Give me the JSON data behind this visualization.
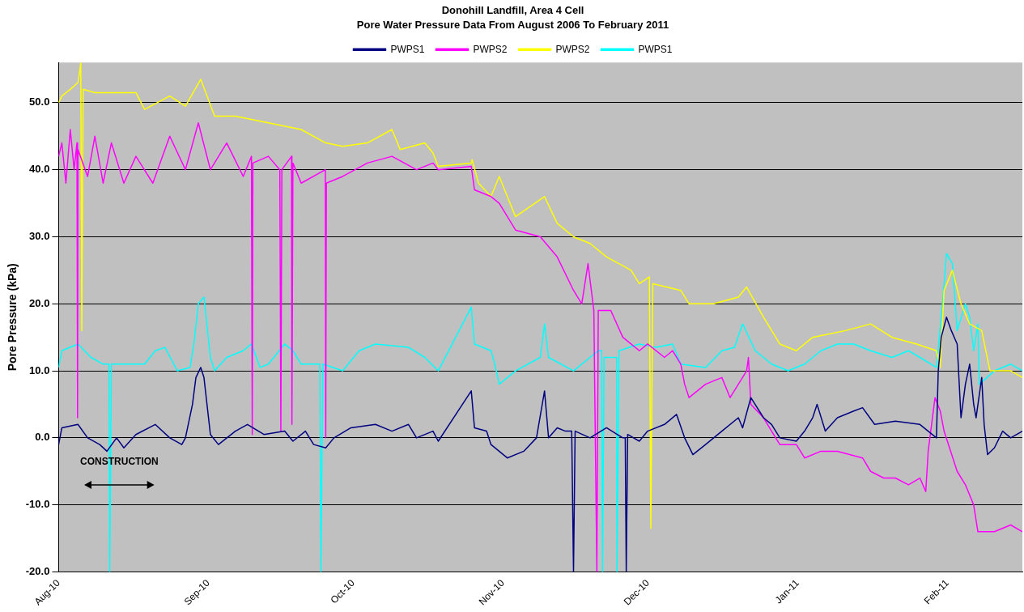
{
  "chart_data": {
    "type": "line",
    "title": "Donohill Landfill, Area 4 Cell",
    "subtitle": "Pore Water Pressure Data From August 2006 To February 2011",
    "ylabel": "Pore Pressure (kPa)",
    "legend": "top",
    "grid": "y",
    "marker": "none",
    "line_style": "solid",
    "xlim": [
      "2010-08-01",
      "2011-02-16T12:00"
    ],
    "xticks": [
      {
        "value": "2010-08-01",
        "label": "Aug-10"
      },
      {
        "value": "2010-09-01",
        "label": "Sep-10"
      },
      {
        "value": "2010-10-01",
        "label": "Oct-10"
      },
      {
        "value": "2010-11-01",
        "label": "Nov-10"
      },
      {
        "value": "2010-12-01",
        "label": "Dec-10"
      },
      {
        "value": "2011-01-01",
        "label": "Jan-11"
      },
      {
        "value": "2011-02-01",
        "label": "Feb-11"
      }
    ],
    "ylim": [
      -20,
      56
    ],
    "yticks": [
      {
        "value": -20,
        "label": "-20.0"
      },
      {
        "value": -10,
        "label": "-10.0"
      },
      {
        "value": 0,
        "label": "0.0"
      },
      {
        "value": 10,
        "label": "10.0"
      },
      {
        "value": 20,
        "label": "20.0"
      },
      {
        "value": 30,
        "label": "30.0"
      },
      {
        "value": 40,
        "label": "40.0"
      },
      {
        "value": 50,
        "label": "50.0"
      }
    ],
    "annotations": [
      "CONSTRUCTION"
    ],
    "series": [
      {
        "name": "PWPS1",
        "color": "#000080",
        "x": [
          "2010-08-01",
          "2010-08-01T16:00",
          "2010-08-05",
          "2010-08-07",
          "2010-08-09T12:00",
          "2010-08-11",
          "2010-08-13",
          "2010-08-14T12:00",
          "2010-08-17",
          "2010-08-21",
          "2010-08-24",
          "2010-08-26T12:00",
          "2010-08-27T06:00",
          "2010-08-28T17:00",
          "2010-08-29T10:00",
          "2010-08-30T10:00",
          "2010-08-31T02:00",
          "2010-09-01T10:00",
          "2010-09-03T02:00",
          "2010-09-06T14:00",
          "2010-09-09T02:00",
          "2010-09-12T12:00",
          "2010-09-16T19:00",
          "2010-09-18T12:00",
          "2010-09-21T02:00",
          "2010-09-22T19:00",
          "2010-09-25T07:00",
          "2010-09-27",
          "2010-09-30T12:00",
          "2010-10-05T14:00",
          "2010-10-09",
          "2010-10-12T10:00",
          "2010-10-14T02:00",
          "2010-10-17T12:00",
          "2010-10-18T14:00",
          "2010-10-25T10:00",
          "2010-10-26T02:00",
          "2010-10-28T14:00",
          "2010-10-29T12:00",
          "2010-11-01T21:00",
          "2010-11-05T07:00",
          "2010-11-07T22:00",
          "2010-11-09T14:00",
          "2010-11-10T10:00",
          "2010-11-12T05:00",
          "2010-11-13T22:00",
          "2010-11-15T05:00",
          "2010-11-15T14:00",
          "2010-11-15T22:00",
          "2010-11-19",
          "2010-11-22T10:00",
          "2010-11-25T19:00",
          "2010-11-26T07:00",
          "2010-11-26T12:00",
          "2010-11-26T19:00",
          "2010-11-29T05:00",
          "2010-11-30T22:00",
          "2010-12-04T10:00",
          "2010-12-06T22:00",
          "2010-12-08T14:00",
          "2010-12-10T07:00",
          "2010-12-12T22:00",
          "2010-12-16T07:00",
          "2010-12-19T17:00",
          "2010-12-20T14:00",
          "2010-12-22T07:00",
          "2010-12-24T22:00",
          "2010-12-26T14:00",
          "2010-12-28T07:00",
          "2010-12-31T17:00",
          "2011-01-02T10:00",
          "2011-01-04T02:00",
          "2011-01-05",
          "2011-01-06T17:00",
          "2011-01-09T05:00",
          "2011-01-12T14:00",
          "2011-01-14T10:00",
          "2011-01-16T22:00",
          "2011-01-21T05:00",
          "2011-01-26T07:00",
          "2011-01-28",
          "2011-01-29T17:00",
          "2011-01-30T02:00",
          "2011-01-30T17:00",
          "2011-01-31T19:00",
          "2011-02-01T19:00",
          "2011-02-03",
          "2011-02-03T19:00",
          "2011-02-04T17:00",
          "2011-02-05T14:00",
          "2011-02-06T10:00",
          "2011-02-06T22:00",
          "2011-02-08T02:00",
          "2011-02-08T14:00",
          "2011-02-09T07:00",
          "2011-02-10T17:00",
          "2011-02-12T10:00",
          "2011-02-14T02:00",
          "2011-02-16T12:00"
        ],
        "values": [
          -1,
          1.5,
          2,
          0,
          -1,
          -2,
          0,
          -1.5,
          0.5,
          2,
          0,
          -1,
          0,
          5,
          9,
          10.5,
          9,
          0.5,
          -1,
          1,
          2,
          0.5,
          1,
          -0.5,
          1,
          -1,
          -1.5,
          0,
          1.5,
          2,
          1,
          2,
          0,
          1,
          -0.5,
          7,
          1.5,
          1,
          -1,
          -3,
          -2,
          0,
          7,
          0,
          1.5,
          1,
          1,
          -20,
          1,
          0,
          1.5,
          0,
          0,
          -20,
          0.5,
          -0.5,
          1,
          2,
          3.5,
          0,
          -2.5,
          -1,
          1,
          3,
          1.5,
          6,
          3,
          2,
          0,
          -0.5,
          1,
          3,
          5,
          1,
          3,
          4,
          4.5,
          2,
          2.5,
          2,
          1,
          0,
          10,
          15,
          18,
          16,
          14,
          3,
          8,
          11,
          5,
          3,
          9,
          2,
          -2.5,
          -1.5,
          1,
          0,
          1
        ]
      },
      {
        "name": "PWPS2",
        "color": "#ff00ff",
        "x": [
          "2010-08-01",
          "2010-08-01T16:00",
          "2010-08-02T12:00",
          "2010-08-03T10:00",
          "2010-08-04T05:00",
          "2010-08-04T19:00",
          "2010-08-04T22:00",
          "2010-08-05",
          "2010-08-07",
          "2010-08-08T12:00",
          "2010-08-10T05:00",
          "2010-08-11T22:00",
          "2010-08-14T12:00",
          "2010-08-17",
          "2010-08-20T12:00",
          "2010-08-24",
          "2010-08-27T06:00",
          "2010-08-29T22:00",
          "2010-09-01T10:00",
          "2010-09-04T19:00",
          "2010-09-08T05:00",
          "2010-09-09T22:00",
          "2010-09-10T02:00",
          "2010-09-10T05:00",
          "2010-09-13T10:00",
          "2010-09-15T19:00",
          "2010-09-16",
          "2010-09-16T05:00",
          "2010-09-18T05:00",
          "2010-09-18T07:00",
          "2010-09-18T12:00",
          "2010-09-20T05:00",
          "2010-09-25T05:00",
          "2010-09-25T07:00",
          "2010-09-25T10:00",
          "2010-09-28T19:00",
          "2010-10-03T22:00",
          "2010-10-09",
          "2010-10-14T02:00",
          "2010-10-17T12:00",
          "2010-10-18T14:00",
          "2010-10-25T10:00",
          "2010-10-26T02:00",
          "2010-10-29T12:00",
          "2010-10-31T05:00",
          "2010-11-03T14:00",
          "2010-11-08T17:00",
          "2010-11-12T05:00",
          "2010-11-15T14:00",
          "2010-11-17T07:00",
          "2010-11-18T14:00",
          "2010-11-19T19:00",
          "2010-11-20T10:00",
          "2010-11-20T17:00",
          "2010-11-23T07:00",
          "2010-11-25T19:00",
          "2010-11-29T05:00",
          "2010-11-30T22:00",
          "2010-12-04T10:00",
          "2010-12-06T02:00",
          "2010-12-07T19:00",
          "2010-12-08T14:00",
          "2010-12-09T12:00",
          "2010-12-12T22:00",
          "2010-12-16T07:00",
          "2010-12-18",
          "2010-12-21T10:00",
          "2010-12-21T19:00",
          "2010-12-22T07:00",
          "2010-12-24T22:00",
          "2010-12-26T14:00",
          "2010-12-28T07:00",
          "2010-12-31T17:00",
          "2011-01-02T10:00",
          "2011-01-05T19:00",
          "2011-01-09T05:00",
          "2011-01-14T10:00",
          "2011-01-16T02:00",
          "2011-01-18T19:00",
          "2011-01-21T05:00",
          "2011-01-23T22:00",
          "2011-01-26T07:00",
          "2011-01-27T12:00",
          "2011-01-28",
          "2011-01-29T10:00",
          "2011-01-30T12:00",
          "2011-01-31T07:00",
          "2011-02-03",
          "2011-02-04T17:00",
          "2011-02-06T10:00",
          "2011-02-07T07:00",
          "2011-02-10T17:00",
          "2011-02-14T02:00",
          "2011-02-16T12:00"
        ],
        "values": [
          42,
          44,
          38,
          46,
          40,
          44,
          3,
          43,
          39,
          45,
          38,
          44,
          38,
          42,
          38,
          45,
          40,
          47,
          40,
          44,
          39,
          42,
          0.5,
          41,
          42,
          40,
          1,
          40,
          42,
          2,
          41,
          38,
          40,
          0,
          38,
          39,
          41,
          42,
          40,
          41,
          40,
          40.5,
          37,
          36,
          35,
          31,
          30,
          27,
          22,
          20,
          26,
          19,
          -20,
          19,
          19,
          15,
          13,
          14,
          12,
          13,
          11,
          8,
          6,
          8,
          9,
          6,
          10,
          12,
          5,
          3,
          1,
          -1,
          -1,
          -3,
          -2,
          -2,
          -3,
          -5,
          -6,
          -6,
          -7,
          -6,
          -8,
          -2,
          6,
          4,
          1,
          -5,
          -7,
          -10,
          -14,
          -14,
          -13,
          -14
        ]
      },
      {
        "name": "PWPS2",
        "color": "#ffff00",
        "x": [
          "2010-08-01",
          "2010-08-01T16:00",
          "2010-08-03T10:00",
          "2010-08-05",
          "2010-08-05T10:00",
          "2010-08-05T14:00",
          "2010-08-05T19:00",
          "2010-08-06T02:00",
          "2010-08-08T12:00",
          "2010-08-17",
          "2010-08-18T19:00",
          "2010-08-24",
          "2010-08-27T06:00",
          "2010-08-30T10:00",
          "2010-09-02T07:00",
          "2010-09-06T14:00",
          "2010-09-13T10:00",
          "2010-09-20T05:00",
          "2010-09-25T07:00",
          "2010-09-28T19:00",
          "2010-10-03T22:00",
          "2010-10-09",
          "2010-10-10T17:00",
          "2010-10-15T19:00",
          "2010-10-17T12:00",
          "2010-10-18T14:00",
          "2010-10-25T10:00",
          "2010-10-25T14:00",
          "2010-10-26T22:00",
          "2010-10-29T12:00",
          "2010-10-31T05:00",
          "2010-11-01T21:00",
          "2010-11-03T14:00",
          "2010-11-09T14:00",
          "2010-11-12T05:00",
          "2010-11-15T14:00",
          "2010-11-19",
          "2010-11-22T10:00",
          "2010-11-27T12:00",
          "2010-11-29T05:00",
          "2010-12-01T07:00",
          "2010-12-01T14:00",
          "2010-12-02",
          "2010-12-07T19:00",
          "2010-12-09T12:00",
          "2010-12-14T14:00",
          "2010-12-19T17:00",
          "2010-12-21T10:00",
          "2010-12-24T22:00",
          "2010-12-28T07:00",
          "2010-12-31T17:00",
          "2011-01-04T02:00",
          "2011-01-10T22:00",
          "2011-01-16T02:00",
          "2011-01-20T12:00",
          "2011-01-25T14:00",
          "2011-01-29T17:00",
          "2011-01-30T12:00",
          "2011-01-31T07:00",
          "2011-02-02",
          "2011-02-03T19:00",
          "2011-02-05T14:00",
          "2011-02-08T02:00",
          "2011-02-09T19:00",
          "2011-02-14T02:00",
          "2011-02-16T12:00"
        ],
        "values": [
          50,
          51,
          52,
          53,
          55,
          56,
          16,
          52,
          51.5,
          51.5,
          49,
          51,
          49.5,
          53.5,
          48,
          48,
          47,
          46,
          44,
          43.5,
          44,
          46,
          43,
          44,
          42.5,
          40.5,
          41,
          41.5,
          38,
          36,
          39,
          36,
          33,
          36,
          32,
          30,
          29,
          27,
          25,
          23,
          24,
          -13.5,
          23,
          22,
          20,
          20,
          21,
          22.5,
          18,
          14,
          13,
          15,
          16,
          17,
          15,
          14,
          13,
          10.5,
          22,
          25,
          20,
          17,
          16,
          10,
          10,
          9
        ]
      },
      {
        "name": "PWPS1",
        "color": "#00ffff",
        "x": [
          "2010-08-01",
          "2010-08-01T16:00",
          "2010-08-05",
          "2010-08-07T17:00",
          "2010-08-10T05:00",
          "2010-08-11T10:00",
          "2010-08-11T14:00",
          "2010-08-11T22:00",
          "2010-08-18T19:00",
          "2010-08-21",
          "2010-08-23",
          "2010-08-25T14:00",
          "2010-08-28T05:00",
          "2010-08-29",
          "2010-08-29T22:00",
          "2010-08-31T02:00",
          "2010-09-01T10:00",
          "2010-09-02T07:00",
          "2010-09-04T19:00",
          "2010-09-08T05:00",
          "2010-09-09T22:00",
          "2010-09-11T17:00",
          "2010-09-13T10:00",
          "2010-09-16T19:00",
          "2010-09-18T12:00",
          "2010-09-20T05:00",
          "2010-09-24T02:00",
          "2010-09-24T07:00",
          "2010-09-24T17:00",
          "2010-09-28T19:00",
          "2010-10-02T05:00",
          "2010-10-05T14:00",
          "2010-10-12T10:00",
          "2010-10-15T19:00",
          "2010-10-18T14:00",
          "2010-10-25T10:00",
          "2010-10-26T02:00",
          "2010-10-29T12:00",
          "2010-10-30T07:00",
          "2010-10-31T05:00",
          "2010-11-03T14:00",
          "2010-11-08T17:00",
          "2010-11-09T14:00",
          "2010-11-10T10:00",
          "2010-11-15T14:00",
          "2010-11-19",
          "2010-11-20T17:00",
          "2010-11-21T10:00",
          "2010-11-21T14:00",
          "2010-11-21T22:00",
          "2010-11-24T12:00",
          "2010-11-24T14:00",
          "2010-11-25",
          "2010-11-29T05:00",
          "2010-12-02T17:00",
          "2010-12-06T02:00",
          "2010-12-07T19:00",
          "2010-12-12T22:00",
          "2010-12-16T07:00",
          "2010-12-18T22:00",
          "2010-12-20T14:00",
          "2010-12-23T05:00",
          "2010-12-26T14:00",
          "2010-12-30",
          "2011-01-02T10:00",
          "2011-01-05T19:00",
          "2011-01-09T05:00",
          "2011-01-12T14:00",
          "2011-01-16T02:00",
          "2011-01-20T12:00",
          "2011-01-23T22:00",
          "2011-01-26T07:00",
          "2011-01-29T17:00",
          "2011-01-31T02:00",
          "2011-01-31T19:00",
          "2011-02-02",
          "2011-02-03",
          "2011-02-04T17:00",
          "2011-02-05T14:00",
          "2011-02-06T10:00",
          "2011-02-07T07:00",
          "2011-02-07T14:00",
          "2011-02-10T17:00",
          "2011-02-14T02:00",
          "2011-02-16T12:00"
        ],
        "values": [
          10.5,
          13,
          14,
          12,
          11,
          11,
          -20,
          11,
          11,
          13,
          13.5,
          10,
          10.5,
          14,
          20,
          21,
          12,
          10,
          12,
          13,
          14,
          10.5,
          11,
          14,
          13,
          11,
          11,
          -20,
          11,
          10,
          13,
          14,
          13.5,
          12,
          10,
          19.5,
          14,
          13,
          11,
          8,
          10,
          12,
          17,
          12,
          10,
          12,
          13,
          13,
          -20,
          12,
          12,
          -20,
          13,
          14,
          13.5,
          14,
          11,
          10.5,
          13,
          13.5,
          17,
          13,
          11,
          10,
          11,
          13,
          14,
          14,
          13,
          12,
          13,
          12,
          10.5,
          21,
          27.5,
          26,
          16,
          20,
          18,
          13,
          17,
          8,
          10,
          11,
          10
        ]
      }
    ]
  }
}
